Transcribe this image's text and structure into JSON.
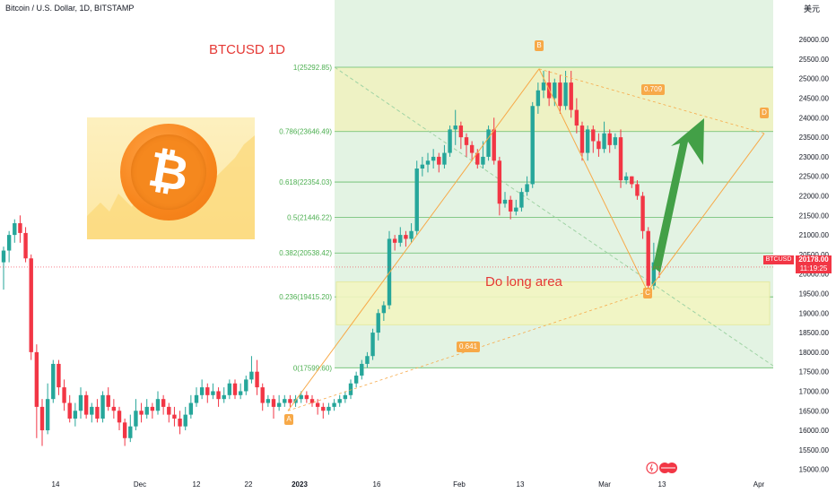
{
  "header": {
    "symbol_title": "Bitcoin / U.S. Dollar, 1D, BITSTAMP",
    "currency_unit": "美元"
  },
  "annotations": {
    "title": "BTCUSD 1D",
    "long_zone_label": "Do long area",
    "points": [
      "A",
      "B",
      "C",
      "D"
    ],
    "ratios": [
      "0.709",
      "0.641"
    ],
    "current_price": "20178.00",
    "countdown": "11:19:25",
    "price_symbol": "BTCUSD"
  },
  "colors": {
    "up": "#26a69a",
    "down": "#f23645",
    "fib_band_upper": "#eef2c4",
    "fib_band_green": "#e3f3e3",
    "fib_line": "#66bb6a",
    "harmonic": "#f7a948",
    "arrow": "#43a047",
    "title": "#e53935"
  },
  "chart_data": {
    "type": "candlestick",
    "title": "Bitcoin / U.S. Dollar, 1D, BITSTAMP",
    "ylim": [
      14900,
      26600
    ],
    "y_ticks": [
      15000,
      15500,
      16000,
      16500,
      17000,
      17500,
      18000,
      18500,
      19000,
      19500,
      20000,
      20500,
      21000,
      21500,
      22000,
      22500,
      23000,
      23500,
      24000,
      24500,
      25000,
      25500,
      26000
    ],
    "x_tick_labels": [
      "14",
      "Dec",
      "12",
      "22",
      "2023",
      "16",
      "Feb",
      "13",
      "Mar",
      "13",
      "Apr"
    ],
    "fib_levels": [
      {
        "ratio": "1",
        "price": 25292.85,
        "label": "1(25292.85)"
      },
      {
        "ratio": "0.786",
        "price": 23646.49,
        "label": "0.786(23646.49)"
      },
      {
        "ratio": "0.618",
        "price": 22354.03,
        "label": "0.618(22354.03)"
      },
      {
        "ratio": "0.5",
        "price": 21446.22,
        "label": "0.5(21446.22)"
      },
      {
        "ratio": "0.382",
        "price": 20538.42,
        "label": "0.382(20538.42)"
      },
      {
        "ratio": "0.236",
        "price": 19415.2,
        "label": "0.236(19415.20)"
      },
      {
        "ratio": "0",
        "price": 17599.6,
        "label": "0(17599.60)"
      }
    ],
    "last_price": 20178.0,
    "pattern": {
      "A": 16500,
      "B": 25250,
      "C": 19550,
      "D": 23600
    },
    "long_zone": [
      18700,
      19800
    ],
    "candles": [
      [
        20300,
        20600,
        19600,
        20700
      ],
      [
        20600,
        21000,
        20300,
        21100
      ],
      [
        21000,
        21300,
        20800,
        21400
      ],
      [
        21300,
        21050,
        20800,
        21500
      ],
      [
        21050,
        20400,
        20300,
        21200
      ],
      [
        20400,
        18000,
        17800,
        20500
      ],
      [
        18000,
        16600,
        15800,
        18200
      ],
      [
        16600,
        16000,
        15600,
        16800
      ],
      [
        16000,
        16800,
        15900,
        17200
      ],
      [
        16800,
        17700,
        16700,
        17800
      ],
      [
        17700,
        17100,
        16900,
        17800
      ],
      [
        17100,
        16700,
        16500,
        17300
      ],
      [
        16700,
        16300,
        16200,
        16900
      ],
      [
        16300,
        16500,
        16100,
        16700
      ],
      [
        16500,
        16900,
        16300,
        17100
      ],
      [
        16900,
        16400,
        16300,
        17000
      ],
      [
        16400,
        16600,
        16200,
        16700
      ],
      [
        16600,
        16300,
        16200,
        16800
      ],
      [
        16300,
        16900,
        16200,
        17000
      ],
      [
        16900,
        16600,
        16500,
        17100
      ],
      [
        16600,
        16500,
        16300,
        16800
      ],
      [
        16500,
        16200,
        16000,
        16600
      ],
      [
        16200,
        15800,
        15600,
        16300
      ],
      [
        15800,
        16100,
        15700,
        16400
      ],
      [
        16100,
        16500,
        16000,
        16800
      ],
      [
        16500,
        16400,
        16200,
        16700
      ],
      [
        16400,
        16600,
        16300,
        16800
      ],
      [
        16600,
        16500,
        16300,
        16700
      ],
      [
        16500,
        16800,
        16400,
        17000
      ],
      [
        16800,
        16600,
        16400,
        16900
      ],
      [
        16600,
        16400,
        16200,
        16700
      ],
      [
        16400,
        16300,
        16100,
        16600
      ],
      [
        16300,
        16100,
        15900,
        16500
      ],
      [
        16100,
        16400,
        16000,
        16600
      ],
      [
        16400,
        16700,
        16300,
        16900
      ],
      [
        16700,
        16900,
        16600,
        17100
      ],
      [
        16900,
        17100,
        16800,
        17300
      ],
      [
        17100,
        16900,
        16700,
        17200
      ],
      [
        16900,
        17000,
        16800,
        17200
      ],
      [
        17000,
        16800,
        16600,
        17100
      ],
      [
        16800,
        16900,
        16700,
        17100
      ],
      [
        16900,
        17200,
        16800,
        17300
      ],
      [
        17200,
        16900,
        16800,
        17300
      ],
      [
        16900,
        17000,
        16800,
        17200
      ],
      [
        17000,
        17300,
        16900,
        17400
      ],
      [
        17300,
        17500,
        17200,
        17900
      ],
      [
        17500,
        17100,
        16900,
        17800
      ],
      [
        17100,
        16700,
        16500,
        17200
      ],
      [
        16700,
        16800,
        16600,
        16900
      ],
      [
        16800,
        16600,
        16300,
        16900
      ],
      [
        16600,
        16700,
        16500,
        16900
      ],
      [
        16700,
        16800,
        16600,
        16900
      ],
      [
        16800,
        16700,
        16600,
        16900
      ],
      [
        16700,
        16800,
        16600,
        16900
      ],
      [
        16800,
        16900,
        16700,
        17000
      ],
      [
        16900,
        16800,
        16700,
        17000
      ],
      [
        16800,
        16700,
        16600,
        16900
      ],
      [
        16700,
        16600,
        16400,
        16800
      ],
      [
        16600,
        16500,
        16300,
        16700
      ],
      [
        16500,
        16600,
        16400,
        16700
      ],
      [
        16600,
        16700,
        16500,
        16800
      ],
      [
        16700,
        16800,
        16600,
        16900
      ],
      [
        16800,
        16900,
        16700,
        17000
      ],
      [
        16900,
        17200,
        16800,
        17300
      ],
      [
        17200,
        17400,
        17100,
        17500
      ],
      [
        17400,
        17700,
        17300,
        17800
      ],
      [
        17700,
        17900,
        17600,
        18000
      ],
      [
        17900,
        18500,
        17800,
        18600
      ],
      [
        18500,
        19000,
        18300,
        19100
      ],
      [
        19000,
        19200,
        18800,
        19300
      ],
      [
        19200,
        20900,
        19100,
        21100
      ],
      [
        20900,
        20800,
        20600,
        21000
      ],
      [
        20800,
        21000,
        20700,
        21200
      ],
      [
        21000,
        20900,
        20700,
        21100
      ],
      [
        20900,
        21100,
        20800,
        21300
      ],
      [
        21100,
        22700,
        21000,
        22900
      ],
      [
        22700,
        22800,
        22500,
        23000
      ],
      [
        22800,
        22900,
        22600,
        23100
      ],
      [
        22900,
        23000,
        22700,
        23200
      ],
      [
        23000,
        22800,
        22600,
        23100
      ],
      [
        22800,
        23100,
        22700,
        23300
      ],
      [
        23100,
        23700,
        23000,
        23800
      ],
      [
        23700,
        23800,
        23300,
        24200
      ],
      [
        23800,
        23500,
        23200,
        23900
      ],
      [
        23500,
        23300,
        23000,
        23600
      ],
      [
        23300,
        23100,
        22900,
        23400
      ],
      [
        23100,
        22800,
        22700,
        23200
      ],
      [
        22800,
        23000,
        22700,
        23400
      ],
      [
        23000,
        23700,
        22900,
        23800
      ],
      [
        23700,
        22900,
        22800,
        24000
      ],
      [
        22900,
        21800,
        21500,
        23000
      ],
      [
        21800,
        21900,
        21700,
        22100
      ],
      [
        21900,
        21600,
        21400,
        22000
      ],
      [
        21600,
        21700,
        21500,
        21900
      ],
      [
        21700,
        22100,
        21600,
        22200
      ],
      [
        22100,
        22300,
        22000,
        22500
      ],
      [
        22300,
        24300,
        22200,
        24400
      ],
      [
        24300,
        24700,
        24100,
        24900
      ],
      [
        24700,
        24900,
        24500,
        25200
      ],
      [
        24900,
        24500,
        24300,
        25200
      ],
      [
        24500,
        24900,
        24300,
        25000
      ],
      [
        24900,
        24300,
        24100,
        25100
      ],
      [
        24300,
        24900,
        24200,
        25200
      ],
      [
        24900,
        24200,
        24000,
        25200
      ],
      [
        24200,
        23800,
        23600,
        24500
      ],
      [
        23800,
        23100,
        22900,
        23900
      ],
      [
        23100,
        23700,
        22900,
        23800
      ],
      [
        23700,
        23400,
        23100,
        23800
      ],
      [
        23400,
        23200,
        23000,
        23600
      ],
      [
        23200,
        23600,
        23100,
        23900
      ],
      [
        23600,
        23300,
        23100,
        23700
      ],
      [
        23300,
        23500,
        23200,
        23600
      ],
      [
        23500,
        22400,
        22200,
        23700
      ],
      [
        22400,
        22500,
        22300,
        22600
      ],
      [
        22500,
        22300,
        22200,
        22500
      ],
      [
        22300,
        22000,
        21900,
        22400
      ],
      [
        22000,
        21100,
        20900,
        22100
      ],
      [
        21100,
        19700,
        19500,
        21200
      ],
      [
        19700,
        20300,
        19600,
        20800
      ],
      [
        20300,
        20200,
        19900,
        20400
      ]
    ]
  }
}
